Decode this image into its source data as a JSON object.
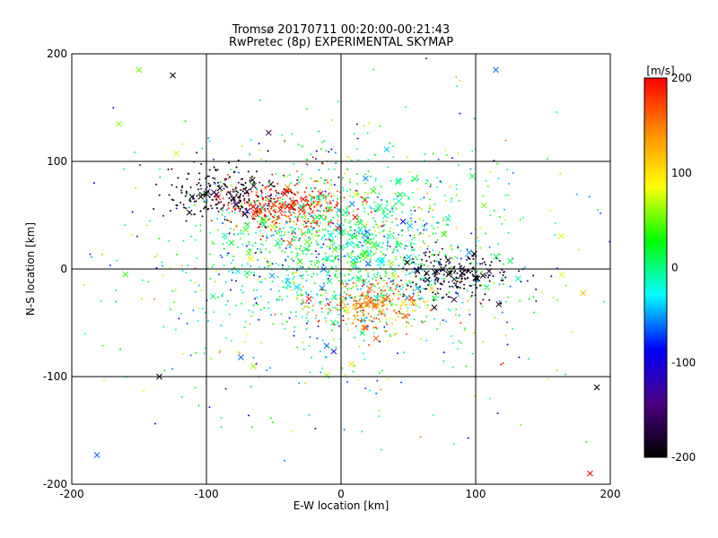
{
  "chart_data": {
    "type": "scatter",
    "title": "Tromsø 20170711 00:20:00-00:21:43",
    "subtitle": "RwPretec (8p) EXPERIMENTAL SKYMAP",
    "xlabel": "E-W location [km]",
    "ylabel": "N-S location [km]",
    "xlim": [
      -200,
      200
    ],
    "ylim": [
      -200,
      200
    ],
    "x_ticks": [
      -200,
      -100,
      0,
      100,
      200
    ],
    "y_ticks": [
      -200,
      -100,
      0,
      100,
      200
    ],
    "grid": true,
    "colorbar": {
      "label": "[m/s]",
      "range": [
        -200,
        200
      ],
      "ticks": [
        200,
        100,
        0,
        -100,
        -200
      ],
      "stops": [
        "#000000",
        "#4b0082",
        "#0000ff",
        "#00ffff",
        "#00ff00",
        "#ffff00",
        "#ff8c00",
        "#ff0000"
      ]
    },
    "markers": {
      "small_dots": "+",
      "large_echoes": "x"
    },
    "clusters": [
      {
        "x": -40,
        "y": 58,
        "velocity": 190,
        "note": "dense red cluster"
      },
      {
        "x": -85,
        "y": 70,
        "velocity": -200,
        "note": "black cluster NW"
      },
      {
        "x": 85,
        "y": -5,
        "velocity": -200,
        "note": "black cluster E"
      },
      {
        "x": 0,
        "y": 20,
        "velocity": 0,
        "note": "green/cyan central cloud"
      },
      {
        "x": 25,
        "y": -35,
        "velocity": 150,
        "note": "orange cluster S"
      }
    ],
    "series": [
      {
        "values": [
          {
            "x": -40,
            "y": 58,
            "v": 200
          },
          {
            "x": -35,
            "y": 62,
            "v": 190
          },
          {
            "x": -45,
            "y": 55,
            "v": 195
          },
          {
            "x": -30,
            "y": 55,
            "v": 180
          },
          {
            "x": -50,
            "y": 60,
            "v": 185
          },
          {
            "x": -90,
            "y": 75,
            "v": -200
          },
          {
            "x": -80,
            "y": 65,
            "v": -190
          },
          {
            "x": -100,
            "y": 70,
            "v": -200
          },
          {
            "x": -70,
            "y": 72,
            "v": -180
          },
          {
            "x": 80,
            "y": -5,
            "v": -200
          },
          {
            "x": 90,
            "y": 0,
            "v": -190
          },
          {
            "x": 100,
            "y": -8,
            "v": -200
          },
          {
            "x": 110,
            "y": -2,
            "v": -180
          },
          {
            "x": 0,
            "y": 20,
            "v": 0
          },
          {
            "x": 10,
            "y": 30,
            "v": 20
          },
          {
            "x": -10,
            "y": 10,
            "v": -20
          },
          {
            "x": 20,
            "y": 25,
            "v": 40
          },
          {
            "x": 25,
            "y": -35,
            "v": 150
          },
          {
            "x": 30,
            "y": -40,
            "v": 140
          },
          {
            "x": -125,
            "y": 180,
            "v": -200
          },
          {
            "x": 115,
            "y": 185,
            "v": -60
          },
          {
            "x": 185,
            "y": -190,
            "v": 200
          },
          {
            "x": 190,
            "y": -110,
            "v": -200
          },
          {
            "x": -135,
            "y": -100,
            "v": -200
          },
          {
            "x": -165,
            "y": 135,
            "v": 60
          },
          {
            "x": -150,
            "y": 185,
            "v": 50
          }
        ]
      }
    ]
  }
}
